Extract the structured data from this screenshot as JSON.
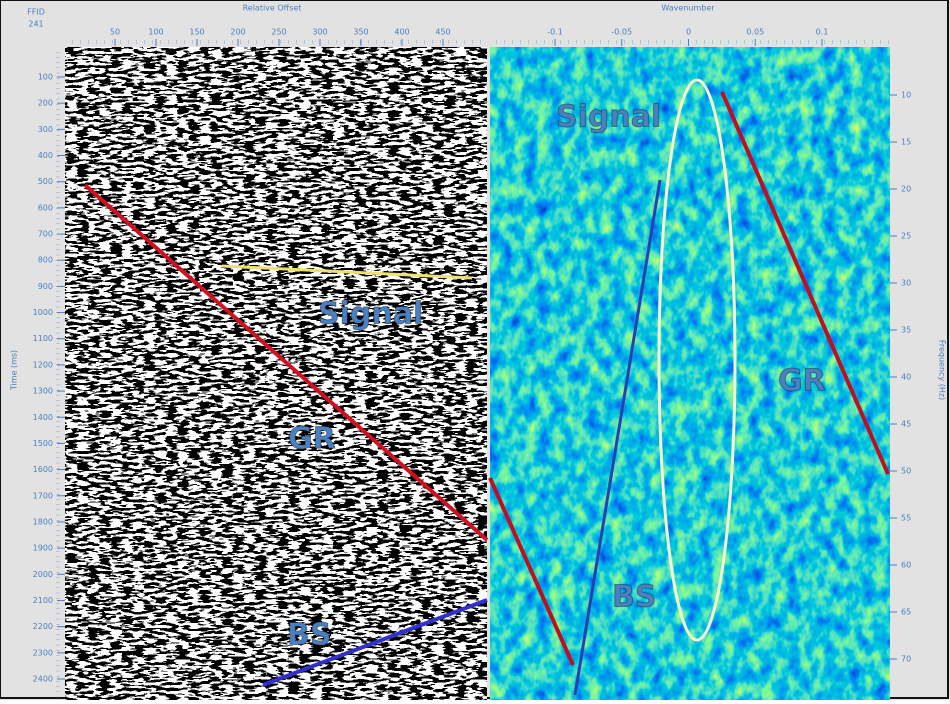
{
  "header": {
    "ffid_label": "FFID",
    "ffid": "241"
  },
  "offset_axis": {
    "title": "Relative Offset",
    "ticks": [
      50,
      100,
      150,
      200,
      250,
      300,
      350,
      400,
      450
    ]
  },
  "wavenumber_axis": {
    "title": "Wavenumber",
    "ticks": [
      -0.1,
      -0.05,
      0,
      0.05,
      0.1
    ]
  },
  "time_axis": {
    "title": "Time (ms)",
    "ticks": [
      100,
      200,
      300,
      400,
      500,
      600,
      700,
      800,
      900,
      1000,
      1100,
      1200,
      1300,
      1400,
      1500,
      1600,
      1700,
      1800,
      1900,
      2000,
      2100,
      2200,
      2300,
      2400
    ]
  },
  "frequency_axis": {
    "title": "Frequency (Hz)",
    "ticks": [
      10,
      15,
      20,
      25,
      30,
      35,
      40,
      45,
      50,
      55,
      60,
      65,
      70
    ]
  },
  "annotations": {
    "left": [
      "Signal",
      "GR",
      "BS"
    ],
    "right": [
      "Signal",
      "GR",
      "BS"
    ]
  }
}
